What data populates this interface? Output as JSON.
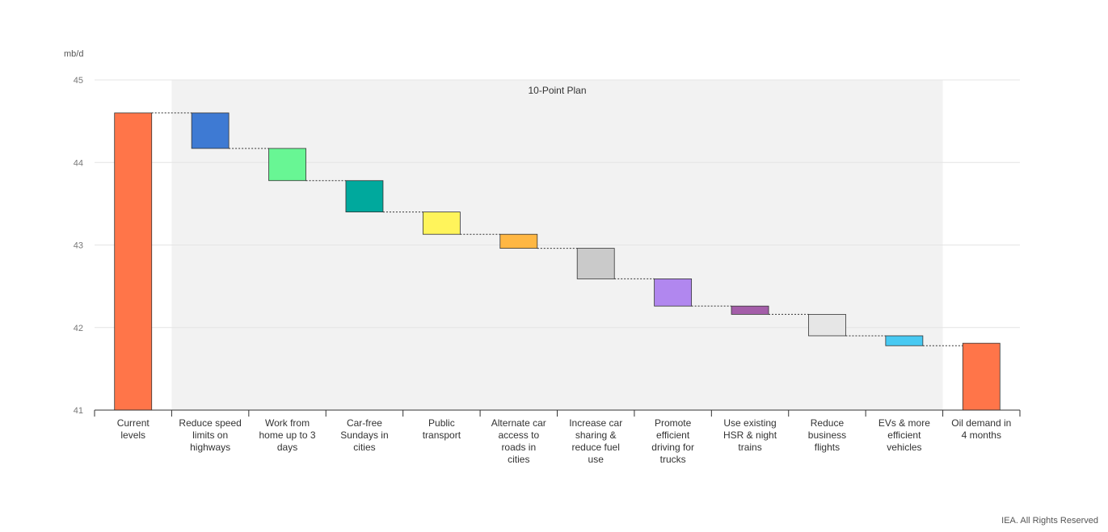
{
  "chart_data": {
    "type": "waterfall",
    "unit_label": "mb/d",
    "ylim": [
      41,
      45
    ],
    "yticks": [
      41,
      42,
      43,
      44,
      45
    ],
    "band_label": "10-Point Plan",
    "band_range": [
      "Reduce speed limits on highways",
      "EVs & more efficient vehicles"
    ],
    "grid": true,
    "bars": [
      {
        "label": "Current levels",
        "kind": "total",
        "value": 44.6,
        "color": "#FF7549"
      },
      {
        "label": "Reduce speed limits on highways",
        "kind": "delta",
        "value": -0.43,
        "color": "#3E7AD3"
      },
      {
        "label": "Work from home up to 3 days",
        "kind": "delta",
        "value": -0.39,
        "color": "#68F694"
      },
      {
        "label": "Car-free Sundays in cities",
        "kind": "delta",
        "value": -0.38,
        "color": "#00A99D"
      },
      {
        "label": "Public transport",
        "kind": "delta",
        "value": -0.27,
        "color": "#FFF45B"
      },
      {
        "label": "Alternate car access to roads in cities",
        "kind": "delta",
        "value": -0.17,
        "color": "#FFB743"
      },
      {
        "label": "Increase car sharing & reduce fuel use",
        "kind": "delta",
        "value": -0.37,
        "color": "#CACACA"
      },
      {
        "label": "Promote efficient driving for trucks",
        "kind": "delta",
        "value": -0.33,
        "color": "#B187EF"
      },
      {
        "label": "Use existing HSR & night trains",
        "kind": "delta",
        "value": -0.1,
        "color": "#A45EA9"
      },
      {
        "label": "Reduce business flights",
        "kind": "delta",
        "value": -0.26,
        "color": "#E6E6E6"
      },
      {
        "label": "EVs & more efficient vehicles",
        "kind": "delta",
        "value": -0.12,
        "color": "#48C9F2"
      },
      {
        "label": "Oil demand in 4 months",
        "kind": "total",
        "value": 41.81,
        "color": "#FF7549"
      }
    ]
  },
  "footer": {
    "credit": "IEA. All Rights Reserved"
  }
}
